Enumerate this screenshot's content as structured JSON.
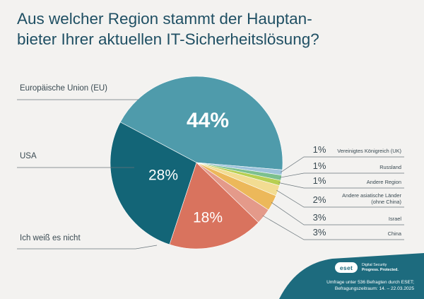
{
  "title": "Aus welcher Region stammt der Hauptan- bieter Ihrer aktuellen IT-Sicherheitslösung?",
  "title_lines": [
    "Aus welcher Region stammt der Hauptan-",
    "bieter Ihrer aktuellen IT-Sicherheitslösung?"
  ],
  "chart_data": {
    "type": "pie",
    "unit": "%",
    "slices": [
      {
        "label": "Europäische Union (EU)",
        "value": 44,
        "display": "44%",
        "color": "#4f9bab"
      },
      {
        "label": "Vereinigtes Königreich (UK)",
        "value": 1,
        "display": "1%",
        "color": "#9ec3db"
      },
      {
        "label": "Russland",
        "value": 1,
        "display": "1%",
        "color": "#7cc08e"
      },
      {
        "label": "Andere Region",
        "value": 1,
        "display": "1%",
        "color": "#b7cf51"
      },
      {
        "label": "Andere asiatische Länder (ohne China)",
        "label_lines": [
          "Andere asiatische Länder",
          "(ohne China)"
        ],
        "value": 2,
        "display": "2%",
        "color": "#f2dc92"
      },
      {
        "label": "Israel",
        "value": 3,
        "display": "3%",
        "color": "#ecb85a"
      },
      {
        "label": "China",
        "value": 3,
        "display": "3%",
        "color": "#e49a8a"
      },
      {
        "label": "Ich weiß es nicht",
        "value": 18,
        "display": "18%",
        "color": "#d9735e"
      },
      {
        "label": "USA",
        "value": 28,
        "display": "28%",
        "color": "#136577"
      }
    ]
  },
  "footer": {
    "logo": "eset",
    "tagline_lines": [
      "Digital Security",
      "Progress. Protected."
    ],
    "note_lines": [
      "Umfrage unter 536 Befragten durch ESET;",
      "Befragungszeitraum: 14. – 22.03.2025"
    ]
  },
  "colors": {
    "title": "#1f4f63",
    "label_text": "#3a4a52",
    "footer_band": "#1d6b7e",
    "background": "#f3f2f0"
  }
}
